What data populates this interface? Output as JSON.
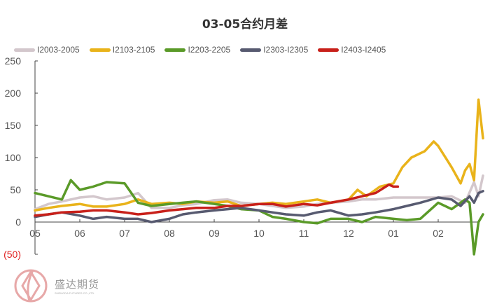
{
  "chart_data": {
    "type": "line",
    "title": "03-05合约月差",
    "xlabel": "",
    "ylabel": "",
    "ylim": [
      -50,
      250
    ],
    "yticks": [
      "250",
      "200",
      "150",
      "100",
      "50",
      "0",
      "(50)"
    ],
    "negative_tick_color": "#e02020",
    "categories": [
      "05",
      "06",
      "07",
      "08",
      "09",
      "10",
      "11",
      "12",
      "01",
      "02"
    ],
    "grid": false,
    "legend_position": "top",
    "series": [
      {
        "name": "I2003-2005",
        "color": "#d3c7cc",
        "x": [
          0,
          0.3,
          0.6,
          1.0,
          1.3,
          1.6,
          2.0,
          2.3,
          2.6,
          3.0,
          3.3,
          3.6,
          4.0,
          4.3,
          4.6,
          5.0,
          5.3,
          5.6,
          6.0,
          6.3,
          6.6,
          7.0,
          7.3,
          7.6,
          8.0,
          8.3,
          8.6,
          9.0,
          9.3,
          9.6,
          9.8,
          9.9,
          10.0
        ],
        "values": [
          20,
          28,
          32,
          38,
          40,
          35,
          38,
          45,
          22,
          22,
          26,
          28,
          34,
          35,
          30,
          28,
          25,
          22,
          24,
          28,
          30,
          32,
          35,
          35,
          38,
          38,
          38,
          38,
          40,
          30,
          62,
          40,
          72
        ]
      },
      {
        "name": "I2103-2105",
        "color": "#e9b31a",
        "x": [
          0,
          0.3,
          0.6,
          1.0,
          1.3,
          1.6,
          2.0,
          2.3,
          2.6,
          3.0,
          3.3,
          3.6,
          4.0,
          4.3,
          4.6,
          5.0,
          5.3,
          5.6,
          6.0,
          6.3,
          6.6,
          7.0,
          7.2,
          7.4,
          7.7,
          8.0,
          8.2,
          8.4,
          8.7,
          8.9,
          9.0,
          9.3,
          9.5,
          9.6,
          9.7,
          9.8,
          9.9,
          10.0
        ],
        "values": [
          18,
          22,
          25,
          28,
          24,
          24,
          28,
          35,
          28,
          30,
          28,
          32,
          30,
          32,
          25,
          28,
          30,
          28,
          32,
          35,
          30,
          35,
          50,
          40,
          55,
          60,
          85,
          100,
          110,
          125,
          118,
          85,
          60,
          80,
          90,
          65,
          190,
          130
        ]
      },
      {
        "name": "I2203-2205",
        "color": "#5a9a28",
        "x": [
          0,
          0.3,
          0.6,
          0.8,
          1.0,
          1.3,
          1.6,
          2.0,
          2.3,
          2.6,
          3.0,
          3.3,
          3.6,
          4.0,
          4.3,
          4.6,
          5.0,
          5.3,
          5.6,
          6.0,
          6.3,
          6.6,
          7.0,
          7.3,
          7.6,
          8.0,
          8.3,
          8.6,
          9.0,
          9.3,
          9.6,
          9.7,
          9.8,
          9.9,
          10.0
        ],
        "values": [
          45,
          40,
          35,
          65,
          50,
          55,
          62,
          60,
          30,
          25,
          28,
          30,
          32,
          28,
          25,
          20,
          18,
          8,
          5,
          0,
          -2,
          5,
          5,
          0,
          8,
          5,
          3,
          5,
          30,
          20,
          35,
          30,
          -50,
          0,
          12
        ]
      },
      {
        "name": "I2303-I2305",
        "color": "#575a70",
        "x": [
          0,
          0.3,
          0.6,
          1.0,
          1.3,
          1.6,
          2.0,
          2.3,
          2.6,
          3.0,
          3.3,
          3.6,
          4.0,
          4.3,
          4.6,
          5.0,
          5.3,
          5.6,
          6.0,
          6.3,
          6.6,
          7.0,
          7.3,
          7.6,
          8.0,
          8.3,
          8.6,
          9.0,
          9.3,
          9.5,
          9.7,
          9.8,
          9.9,
          10.0
        ],
        "values": [
          8,
          12,
          15,
          10,
          5,
          8,
          5,
          5,
          0,
          5,
          12,
          15,
          18,
          20,
          22,
          18,
          15,
          12,
          10,
          15,
          18,
          10,
          12,
          15,
          20,
          25,
          30,
          38,
          35,
          25,
          40,
          30,
          45,
          48
        ]
      },
      {
        "name": "I2403-I2405",
        "color": "#c8201a",
        "x": [
          0,
          0.3,
          0.6,
          1.0,
          1.3,
          1.6,
          2.0,
          2.3,
          2.6,
          3.0,
          3.3,
          3.6,
          4.0,
          4.3,
          4.6,
          5.0,
          5.3,
          5.6,
          6.0,
          6.3,
          6.6,
          7.0,
          7.3,
          7.6,
          7.9,
          8.0,
          8.1
        ],
        "values": [
          10,
          12,
          15,
          16,
          18,
          18,
          15,
          12,
          14,
          18,
          20,
          22,
          22,
          25,
          25,
          28,
          28,
          24,
          28,
          26,
          30,
          35,
          40,
          45,
          58,
          55,
          55
        ]
      }
    ]
  },
  "watermark": {
    "name_cn": "盛达期货",
    "name_en": "SHENGDA FUTURES CO.,LTD."
  }
}
